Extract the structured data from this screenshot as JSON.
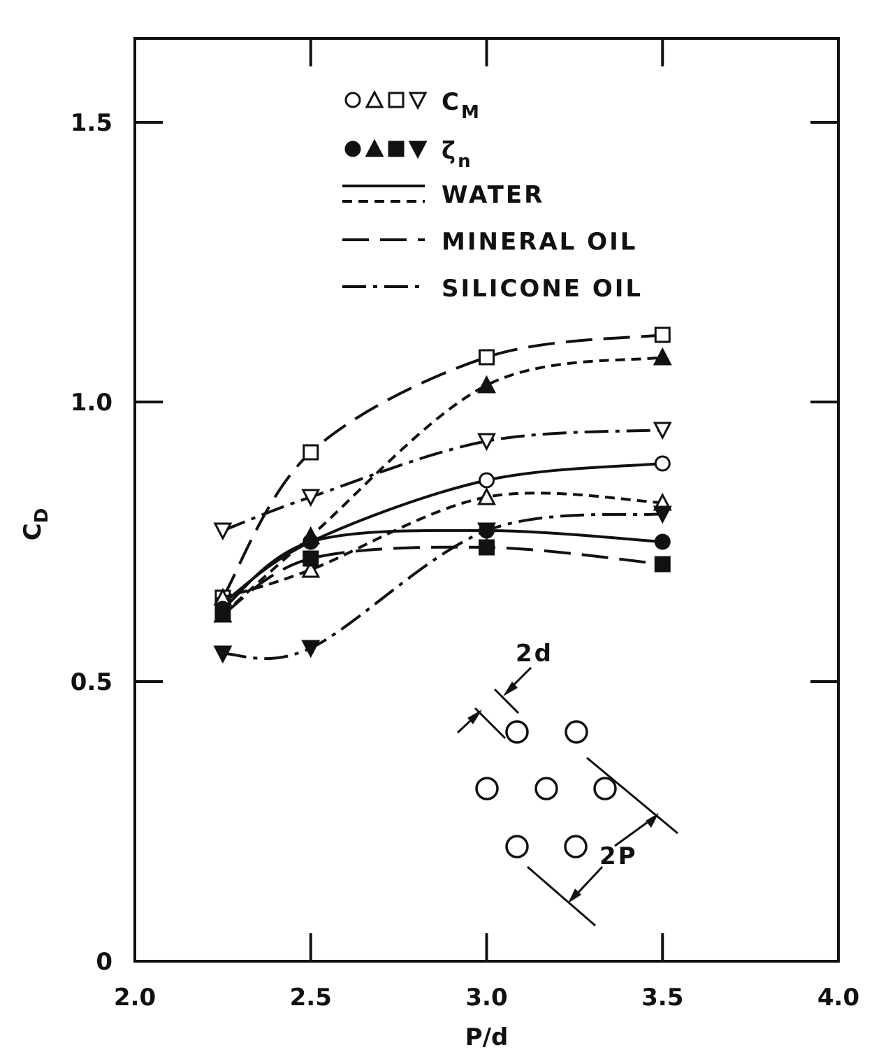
{
  "chart_data": {
    "type": "line",
    "xlabel": "P/d",
    "ylabel": "C",
    "ylabel_sub": "D",
    "xlim": [
      2.0,
      4.0
    ],
    "ylim": [
      0,
      1.65
    ],
    "x_ticks": [
      {
        "value": 2.0,
        "label": "2.0"
      },
      {
        "value": 2.5,
        "label": "2.5"
      },
      {
        "value": 3.0,
        "label": "3.0"
      },
      {
        "value": 3.5,
        "label": "3.5"
      },
      {
        "value": 4.0,
        "label": "4.0"
      }
    ],
    "y_ticks": [
      {
        "value": 0,
        "label": "0"
      },
      {
        "value": 0.5,
        "label": "0.5"
      },
      {
        "value": 1.0,
        "label": "1.0"
      },
      {
        "value": 1.5,
        "label": "1.5"
      }
    ],
    "legend": {
      "symbols": [
        {
          "open": "○△□▽",
          "label": "C",
          "sub": "M"
        },
        {
          "filled": "●▲■▼",
          "label": "ζ",
          "sub": "n"
        }
      ],
      "lines": [
        {
          "style": "solid+short-dash",
          "label": "WATER"
        },
        {
          "style": "long-dash",
          "label": "MINERAL OIL"
        },
        {
          "style": "dash-dot",
          "label": "SILICONE OIL"
        }
      ],
      "placement": "top-left"
    },
    "series": [
      {
        "marker": "square-open",
        "line": "long-dash",
        "x": [
          2.25,
          2.5,
          3.0,
          3.5
        ],
        "y": [
          0.65,
          0.91,
          1.08,
          1.12
        ]
      },
      {
        "marker": "triangle-filled",
        "line": "short-dash",
        "x": [
          2.25,
          2.5,
          3.0,
          3.5
        ],
        "y": [
          0.62,
          0.76,
          1.03,
          1.08
        ]
      },
      {
        "marker": "triangle-down-open",
        "line": "dash-dot",
        "x": [
          2.25,
          2.5,
          3.0,
          3.5
        ],
        "y": [
          0.77,
          0.83,
          0.93,
          0.95
        ]
      },
      {
        "marker": "circle-open",
        "line": "solid",
        "x": [
          2.25,
          2.5,
          3.0,
          3.5
        ],
        "y": [
          0.64,
          0.75,
          0.86,
          0.89
        ]
      },
      {
        "marker": "triangle-open",
        "line": "short-dash",
        "x": [
          2.25,
          2.5,
          3.0,
          3.5
        ],
        "y": [
          0.65,
          0.7,
          0.83,
          0.82
        ]
      },
      {
        "marker": "circle-filled",
        "line": "solid",
        "x": [
          2.25,
          2.5,
          3.0,
          3.5
        ],
        "y": [
          0.63,
          0.75,
          0.77,
          0.75
        ]
      },
      {
        "marker": "square-filled",
        "line": "long-dash",
        "x": [
          2.25,
          2.5,
          3.0,
          3.5
        ],
        "y": [
          0.62,
          0.72,
          0.74,
          0.71
        ]
      },
      {
        "marker": "triangle-down-filled",
        "line": "dash-dot",
        "x": [
          2.25,
          2.5,
          3.0,
          3.5
        ],
        "y": [
          0.55,
          0.56,
          0.77,
          0.8
        ]
      }
    ],
    "inset": {
      "description": "seven-tube bank diagram",
      "label_d": "2d",
      "label_p": "2P"
    },
    "colors": {
      "ink": "#111111",
      "background": "#ffffff"
    }
  }
}
